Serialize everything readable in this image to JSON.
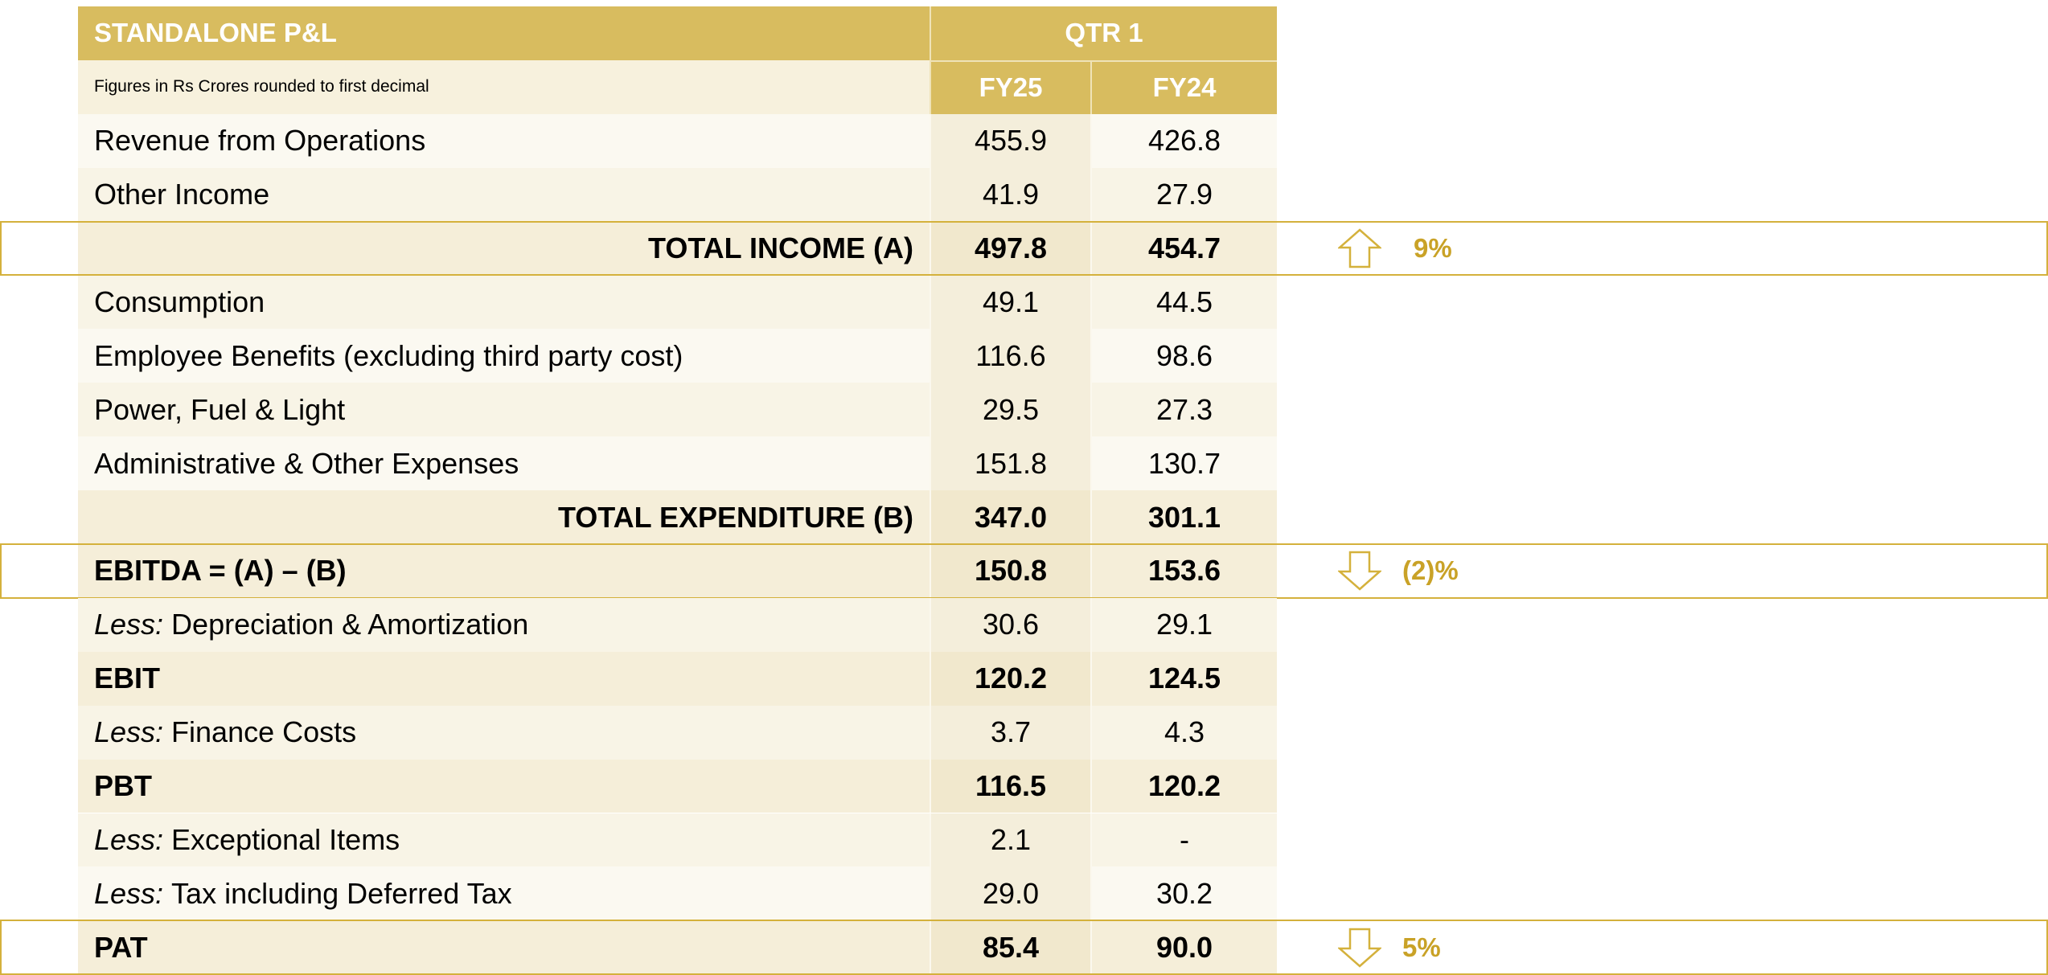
{
  "header": {
    "title": "STANDALONE P&L",
    "period": "QTR 1",
    "note": "Figures in Rs Crores rounded to first decimal",
    "columns": [
      "FY25",
      "FY24"
    ]
  },
  "table": {
    "rows": [
      {
        "label": "Revenue from Operations",
        "values": [
          "455.9",
          "426.8"
        ]
      },
      {
        "label": "Other Income",
        "values": [
          "41.9",
          "27.9"
        ]
      },
      {
        "label": "TOTAL INCOME (A)",
        "values": [
          "497.8",
          "454.7"
        ],
        "bold": true,
        "align": "right",
        "highlight": true,
        "change": "9%",
        "direction": "up"
      },
      {
        "label": "Consumption",
        "values": [
          "49.1",
          "44.5"
        ]
      },
      {
        "label": "Employee Benefits (excluding third party cost)",
        "values": [
          "116.6",
          "98.6"
        ]
      },
      {
        "label": "Power, Fuel & Light",
        "values": [
          "29.5",
          "27.3"
        ]
      },
      {
        "label": "Administrative & Other Expenses",
        "values": [
          "151.8",
          "130.7"
        ]
      },
      {
        "label": "TOTAL EXPENDITURE (B)",
        "values": [
          "347.0",
          "301.1"
        ],
        "bold": true,
        "align": "right"
      },
      {
        "label": "EBITDA = (A) – (B)",
        "values": [
          "150.8",
          "153.6"
        ],
        "bold": true,
        "highlight": true,
        "change": "(2)%",
        "direction": "down"
      },
      {
        "prefix": "Less:",
        "label": "Depreciation & Amortization",
        "values": [
          "30.6",
          "29.1"
        ]
      },
      {
        "label": "EBIT",
        "values": [
          "120.2",
          "124.5"
        ],
        "bold": true
      },
      {
        "prefix": "Less:",
        "label": "Finance Costs",
        "values": [
          "3.7",
          "4.3"
        ]
      },
      {
        "label": "PBT",
        "values": [
          "116.5",
          "120.2"
        ],
        "bold": true
      },
      {
        "prefix": "Less:",
        "label": "Exceptional Items",
        "values": [
          "2.1",
          "-"
        ]
      },
      {
        "prefix": "Less:",
        "label": "Tax including Deferred Tax",
        "values": [
          "29.0",
          "30.2"
        ]
      },
      {
        "label": "PAT",
        "values": [
          "85.4",
          "90.0"
        ],
        "bold": true,
        "highlight": true,
        "change": "5%",
        "direction": "down"
      }
    ]
  }
}
